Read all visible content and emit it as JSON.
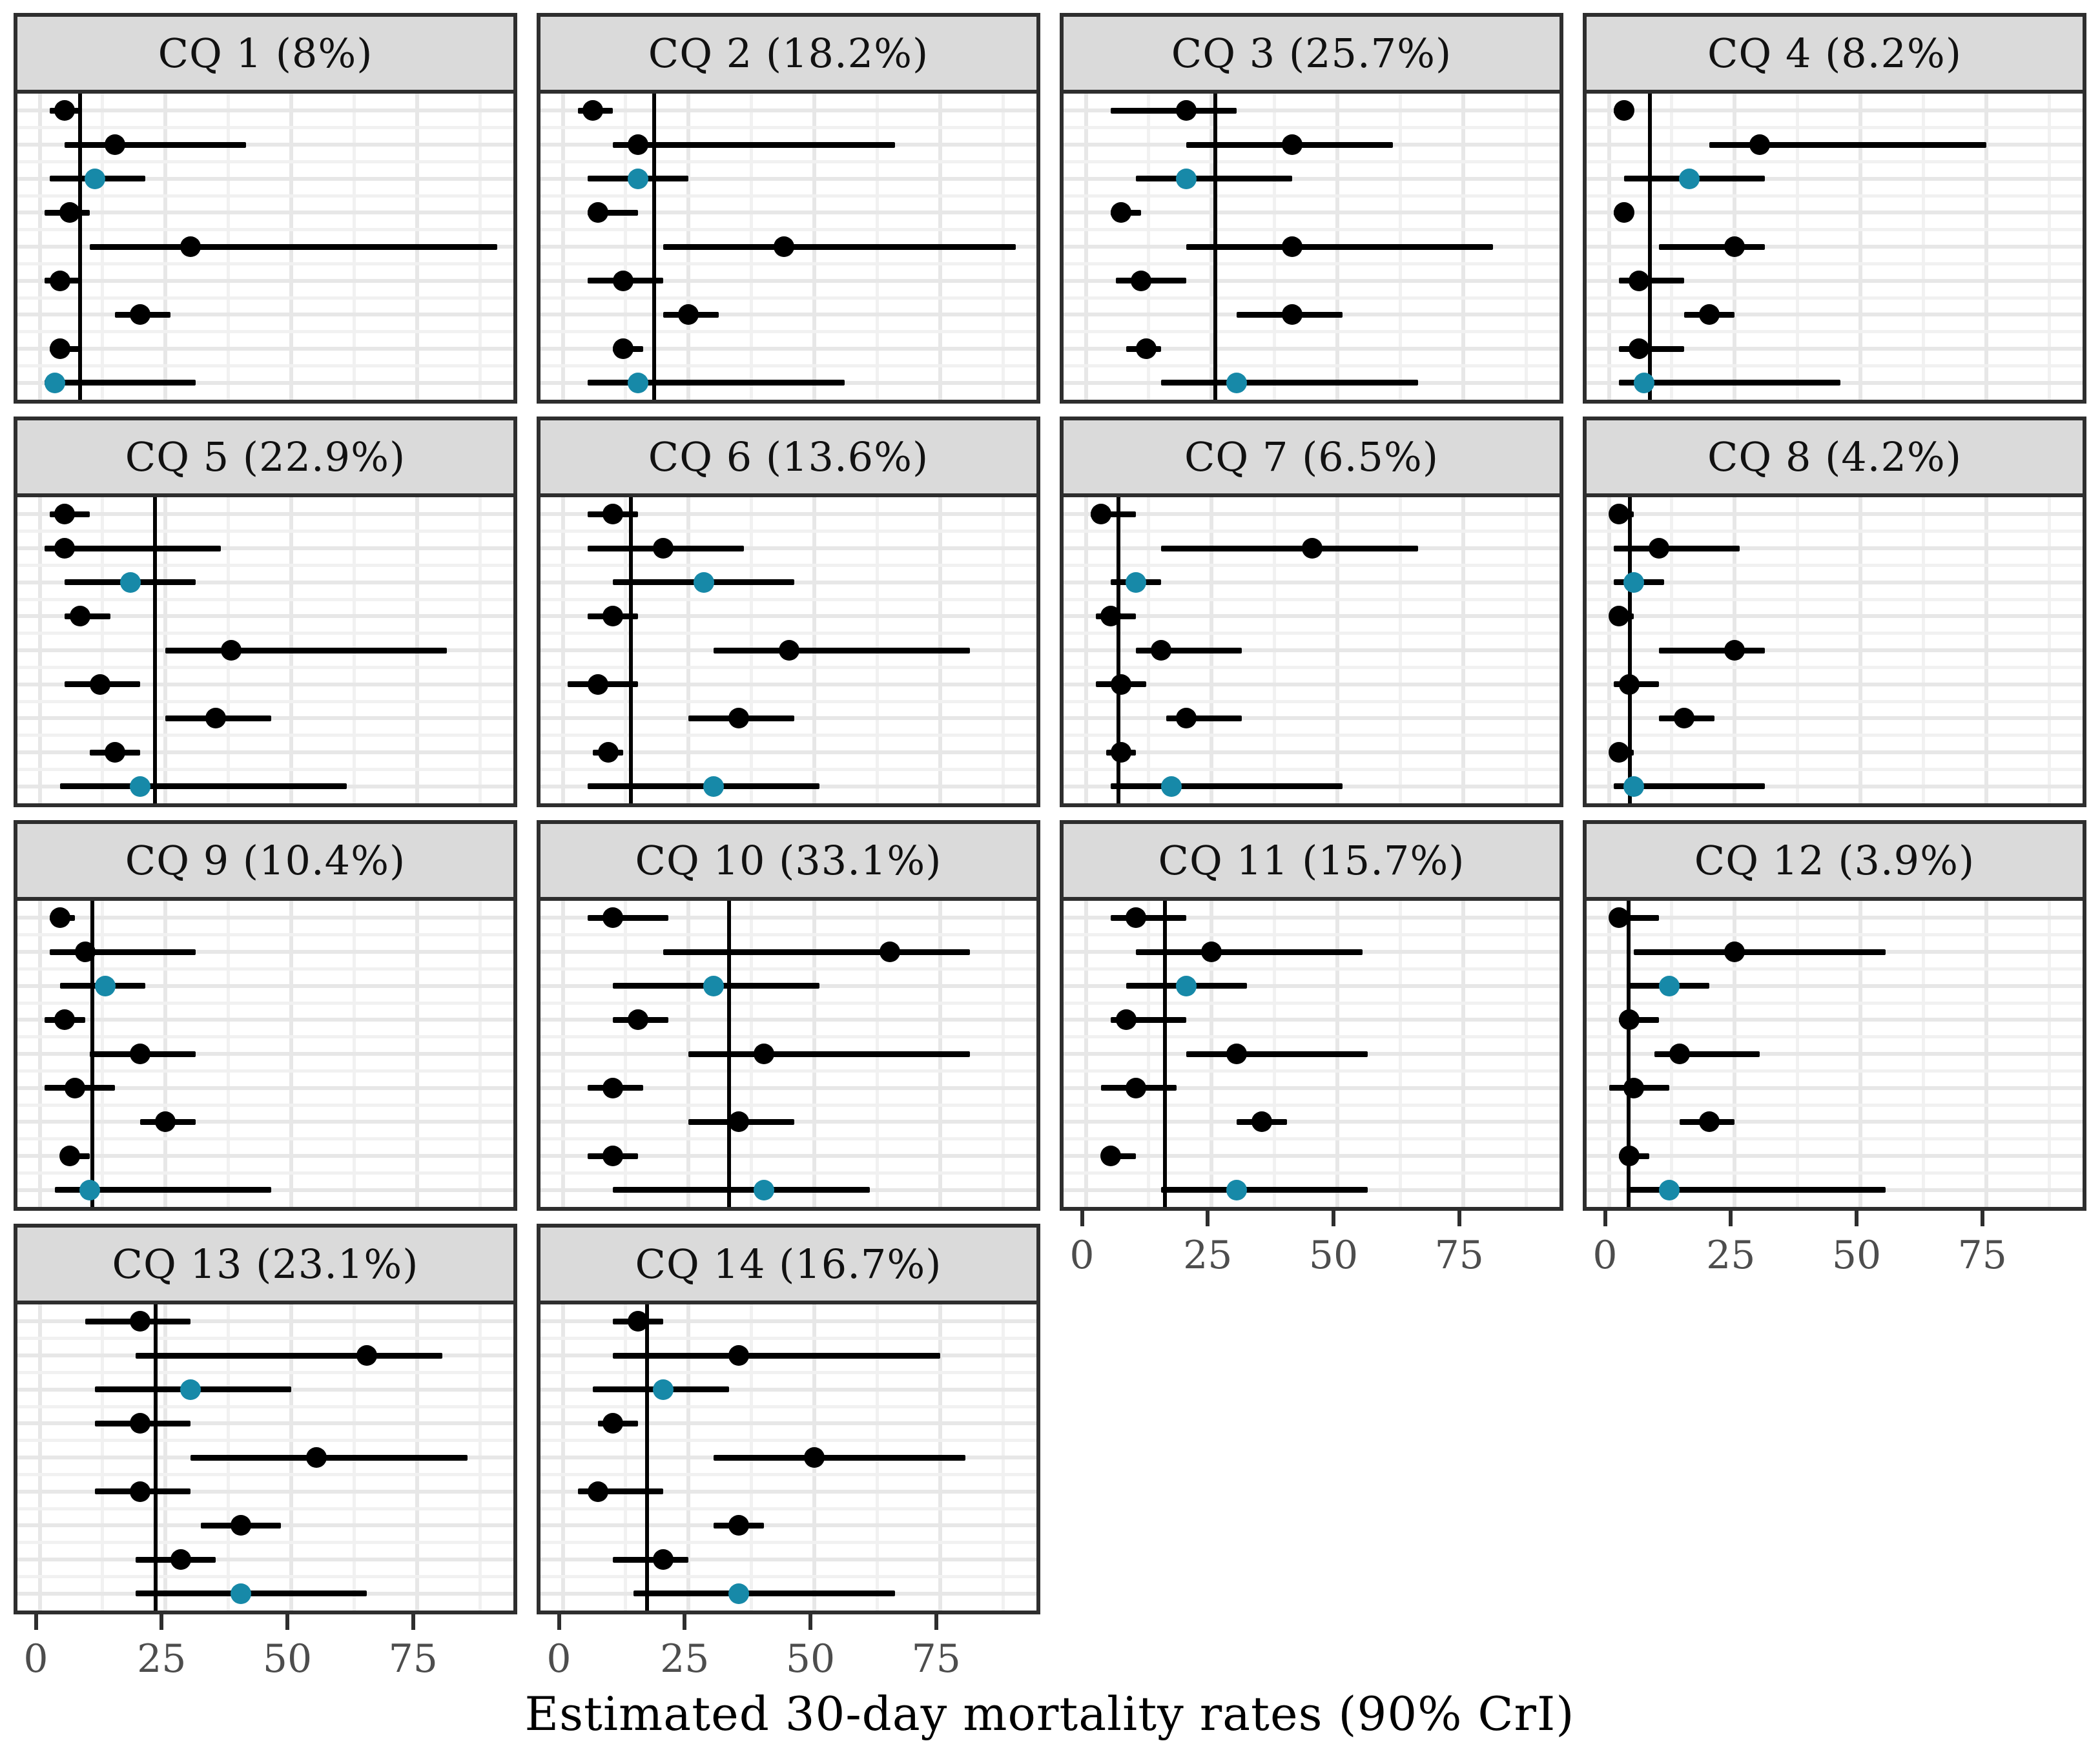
{
  "figure": {
    "caption": "Estimated 30-day mortality rates (90% CrI)"
  },
  "chart_data": {
    "type": "scatter",
    "subtype": "faceted-forest-plot",
    "title": "",
    "xlabel": "Estimated 30-day mortality rates (90% CrI)",
    "ylabel": "",
    "xlim": [
      0,
      96
    ],
    "x_ticks": [
      0,
      25,
      50,
      75
    ],
    "x_minor_gridlines": [
      12.5,
      37.5,
      62.5,
      87.5
    ],
    "grid": true,
    "legend": "none",
    "point_color": "#000000",
    "pooled_point_color": "#1789A8",
    "strip_background": "#DADADA",
    "panel_border_color": "#2E2E2E",
    "gridline_color": "#E7E7E7",
    "axis_text_color": "#4D4D4D",
    "units": "percent",
    "interval_note": "each row = point estimate with 90% credible interval; vertical line = overall rate in facet title; teal points = pooled/highlighted estimates (rows 3 and 9)",
    "panels": [
      {
        "label": "CQ 1 (8%)",
        "reference_line": 8,
        "has_x_axis": false,
        "rows": [
          {
            "est": 5,
            "lo": 2,
            "hi": 8,
            "pooled": false
          },
          {
            "est": 15,
            "lo": 5,
            "hi": 41,
            "pooled": false
          },
          {
            "est": 11,
            "lo": 2,
            "hi": 21,
            "pooled": true
          },
          {
            "est": 6,
            "lo": 1,
            "hi": 10,
            "pooled": false
          },
          {
            "est": 30,
            "lo": 10,
            "hi": 91,
            "pooled": false
          },
          {
            "est": 4,
            "lo": 1,
            "hi": 8,
            "pooled": false
          },
          {
            "est": 20,
            "lo": 15,
            "hi": 26,
            "pooled": false
          },
          {
            "est": 4,
            "lo": 2,
            "hi": 8,
            "pooled": false
          },
          {
            "est": 3,
            "lo": 1,
            "hi": 31,
            "pooled": true
          }
        ]
      },
      {
        "label": "CQ 2 (18.2%)",
        "reference_line": 18.2,
        "has_x_axis": false,
        "rows": [
          {
            "est": 6,
            "lo": 3,
            "hi": 10,
            "pooled": false
          },
          {
            "est": 15,
            "lo": 10,
            "hi": 66,
            "pooled": false
          },
          {
            "est": 15,
            "lo": 5,
            "hi": 25,
            "pooled": true
          },
          {
            "est": 7,
            "lo": 5,
            "hi": 15,
            "pooled": false
          },
          {
            "est": 44,
            "lo": 20,
            "hi": 90,
            "pooled": false
          },
          {
            "est": 12,
            "lo": 5,
            "hi": 20,
            "pooled": false
          },
          {
            "est": 25,
            "lo": 20,
            "hi": 31,
            "pooled": false
          },
          {
            "est": 12,
            "lo": 10,
            "hi": 16,
            "pooled": false
          },
          {
            "est": 15,
            "lo": 5,
            "hi": 56,
            "pooled": true
          }
        ]
      },
      {
        "label": "CQ 3 (25.7%)",
        "reference_line": 25.7,
        "has_x_axis": false,
        "rows": [
          {
            "est": 20,
            "lo": 5,
            "hi": 30,
            "pooled": false
          },
          {
            "est": 41,
            "lo": 20,
            "hi": 61,
            "pooled": false
          },
          {
            "est": 20,
            "lo": 10,
            "hi": 41,
            "pooled": true
          },
          {
            "est": 7,
            "lo": 5,
            "hi": 11,
            "pooled": false
          },
          {
            "est": 41,
            "lo": 20,
            "hi": 81,
            "pooled": false
          },
          {
            "est": 11,
            "lo": 6,
            "hi": 20,
            "pooled": false
          },
          {
            "est": 41,
            "lo": 30,
            "hi": 51,
            "pooled": false
          },
          {
            "est": 12,
            "lo": 8,
            "hi": 15,
            "pooled": false
          },
          {
            "est": 30,
            "lo": 15,
            "hi": 66,
            "pooled": true
          }
        ]
      },
      {
        "label": "CQ 4 (8.2%)",
        "reference_line": 8.2,
        "has_x_axis": false,
        "rows": [
          {
            "est": 3,
            "lo": 1,
            "hi": 5,
            "pooled": false
          },
          {
            "est": 30,
            "lo": 20,
            "hi": 75,
            "pooled": false
          },
          {
            "est": 16,
            "lo": 3,
            "hi": 31,
            "pooled": true
          },
          {
            "est": 3,
            "lo": 1,
            "hi": 5,
            "pooled": false
          },
          {
            "est": 25,
            "lo": 10,
            "hi": 31,
            "pooled": false
          },
          {
            "est": 6,
            "lo": 2,
            "hi": 15,
            "pooled": false
          },
          {
            "est": 20,
            "lo": 15,
            "hi": 25,
            "pooled": false
          },
          {
            "est": 6,
            "lo": 2,
            "hi": 15,
            "pooled": false
          },
          {
            "est": 7,
            "lo": 2,
            "hi": 46,
            "pooled": true
          }
        ]
      },
      {
        "label": "CQ 5 (22.9%)",
        "reference_line": 22.9,
        "has_x_axis": false,
        "rows": [
          {
            "est": 5,
            "lo": 2,
            "hi": 10,
            "pooled": false
          },
          {
            "est": 5,
            "lo": 1,
            "hi": 36,
            "pooled": false
          },
          {
            "est": 18,
            "lo": 5,
            "hi": 31,
            "pooled": true
          },
          {
            "est": 8,
            "lo": 5,
            "hi": 14,
            "pooled": false
          },
          {
            "est": 38,
            "lo": 25,
            "hi": 81,
            "pooled": false
          },
          {
            "est": 12,
            "lo": 5,
            "hi": 20,
            "pooled": false
          },
          {
            "est": 35,
            "lo": 25,
            "hi": 46,
            "pooled": false
          },
          {
            "est": 15,
            "lo": 10,
            "hi": 20,
            "pooled": false
          },
          {
            "est": 20,
            "lo": 4,
            "hi": 61,
            "pooled": true
          }
        ]
      },
      {
        "label": "CQ 6 (13.6%)",
        "reference_line": 13.6,
        "has_x_axis": false,
        "rows": [
          {
            "est": 10,
            "lo": 5,
            "hi": 15,
            "pooled": false
          },
          {
            "est": 20,
            "lo": 5,
            "hi": 36,
            "pooled": false
          },
          {
            "est": 28,
            "lo": 10,
            "hi": 46,
            "pooled": true
          },
          {
            "est": 10,
            "lo": 5,
            "hi": 15,
            "pooled": false
          },
          {
            "est": 45,
            "lo": 30,
            "hi": 81,
            "pooled": false
          },
          {
            "est": 7,
            "lo": 1,
            "hi": 15,
            "pooled": false
          },
          {
            "est": 35,
            "lo": 25,
            "hi": 46,
            "pooled": false
          },
          {
            "est": 9,
            "lo": 6,
            "hi": 12,
            "pooled": false
          },
          {
            "est": 30,
            "lo": 5,
            "hi": 51,
            "pooled": true
          }
        ]
      },
      {
        "label": "CQ 7 (6.5%)",
        "reference_line": 6.5,
        "has_x_axis": false,
        "rows": [
          {
            "est": 3,
            "lo": 1,
            "hi": 10,
            "pooled": false
          },
          {
            "est": 45,
            "lo": 15,
            "hi": 66,
            "pooled": false
          },
          {
            "est": 10,
            "lo": 5,
            "hi": 15,
            "pooled": true
          },
          {
            "est": 5,
            "lo": 2,
            "hi": 10,
            "pooled": false
          },
          {
            "est": 15,
            "lo": 10,
            "hi": 31,
            "pooled": false
          },
          {
            "est": 7,
            "lo": 2,
            "hi": 12,
            "pooled": false
          },
          {
            "est": 20,
            "lo": 16,
            "hi": 31,
            "pooled": false
          },
          {
            "est": 7,
            "lo": 4,
            "hi": 10,
            "pooled": false
          },
          {
            "est": 17,
            "lo": 5,
            "hi": 51,
            "pooled": true
          }
        ]
      },
      {
        "label": "CQ 8 (4.2%)",
        "reference_line": 4.2,
        "has_x_axis": false,
        "rows": [
          {
            "est": 2,
            "lo": 0.5,
            "hi": 5,
            "pooled": false
          },
          {
            "est": 10,
            "lo": 1,
            "hi": 26,
            "pooled": false
          },
          {
            "est": 5,
            "lo": 1,
            "hi": 11,
            "pooled": true
          },
          {
            "est": 2,
            "lo": 0.5,
            "hi": 5,
            "pooled": false
          },
          {
            "est": 25,
            "lo": 10,
            "hi": 31,
            "pooled": false
          },
          {
            "est": 4,
            "lo": 1,
            "hi": 10,
            "pooled": false
          },
          {
            "est": 15,
            "lo": 10,
            "hi": 21,
            "pooled": false
          },
          {
            "est": 2,
            "lo": 0.5,
            "hi": 5,
            "pooled": false
          },
          {
            "est": 5,
            "lo": 1,
            "hi": 31,
            "pooled": true
          }
        ]
      },
      {
        "label": "CQ 9 (10.4%)",
        "reference_line": 10.4,
        "has_x_axis": false,
        "rows": [
          {
            "est": 4,
            "lo": 2,
            "hi": 7,
            "pooled": false
          },
          {
            "est": 9,
            "lo": 2,
            "hi": 31,
            "pooled": false
          },
          {
            "est": 13,
            "lo": 4,
            "hi": 21,
            "pooled": true
          },
          {
            "est": 5,
            "lo": 1,
            "hi": 9,
            "pooled": false
          },
          {
            "est": 20,
            "lo": 10,
            "hi": 31,
            "pooled": false
          },
          {
            "est": 7,
            "lo": 1,
            "hi": 15,
            "pooled": false
          },
          {
            "est": 25,
            "lo": 20,
            "hi": 31,
            "pooled": false
          },
          {
            "est": 6,
            "lo": 4,
            "hi": 10,
            "pooled": false
          },
          {
            "est": 10,
            "lo": 3,
            "hi": 46,
            "pooled": true
          }
        ]
      },
      {
        "label": "CQ 10 (33.1%)",
        "reference_line": 33.1,
        "has_x_axis": false,
        "rows": [
          {
            "est": 10,
            "lo": 5,
            "hi": 21,
            "pooled": false
          },
          {
            "est": 65,
            "lo": 20,
            "hi": 81,
            "pooled": false
          },
          {
            "est": 30,
            "lo": 10,
            "hi": 51,
            "pooled": true
          },
          {
            "est": 15,
            "lo": 10,
            "hi": 21,
            "pooled": false
          },
          {
            "est": 40,
            "lo": 25,
            "hi": 81,
            "pooled": false
          },
          {
            "est": 10,
            "lo": 5,
            "hi": 16,
            "pooled": false
          },
          {
            "est": 35,
            "lo": 25,
            "hi": 46,
            "pooled": false
          },
          {
            "est": 10,
            "lo": 5,
            "hi": 15,
            "pooled": false
          },
          {
            "est": 40,
            "lo": 10,
            "hi": 61,
            "pooled": true
          }
        ]
      },
      {
        "label": "CQ 11 (15.7%)",
        "reference_line": 15.7,
        "has_x_axis": true,
        "rows": [
          {
            "est": 10,
            "lo": 5,
            "hi": 20,
            "pooled": false
          },
          {
            "est": 25,
            "lo": 10,
            "hi": 55,
            "pooled": false
          },
          {
            "est": 20,
            "lo": 8,
            "hi": 32,
            "pooled": true
          },
          {
            "est": 8,
            "lo": 5,
            "hi": 20,
            "pooled": false
          },
          {
            "est": 30,
            "lo": 20,
            "hi": 56,
            "pooled": false
          },
          {
            "est": 10,
            "lo": 3,
            "hi": 18,
            "pooled": false
          },
          {
            "est": 35,
            "lo": 30,
            "hi": 40,
            "pooled": false
          },
          {
            "est": 5,
            "lo": 3,
            "hi": 10,
            "pooled": false
          },
          {
            "est": 30,
            "lo": 15,
            "hi": 56,
            "pooled": true
          }
        ]
      },
      {
        "label": "CQ 12 (3.9%)",
        "reference_line": 3.9,
        "has_x_axis": true,
        "rows": [
          {
            "est": 2,
            "lo": 0,
            "hi": 10,
            "pooled": false
          },
          {
            "est": 25,
            "lo": 5,
            "hi": 55,
            "pooled": false
          },
          {
            "est": 12,
            "lo": 4,
            "hi": 20,
            "pooled": true
          },
          {
            "est": 4,
            "lo": 2,
            "hi": 10,
            "pooled": false
          },
          {
            "est": 14,
            "lo": 9,
            "hi": 30,
            "pooled": false
          },
          {
            "est": 5,
            "lo": 0,
            "hi": 12,
            "pooled": false
          },
          {
            "est": 20,
            "lo": 14,
            "hi": 25,
            "pooled": false
          },
          {
            "est": 4,
            "lo": 2,
            "hi": 8,
            "pooled": false
          },
          {
            "est": 12,
            "lo": 4,
            "hi": 55,
            "pooled": true
          }
        ]
      },
      {
        "label": "CQ 13 (23.1%)",
        "reference_line": 23.1,
        "has_x_axis": true,
        "rows": [
          {
            "est": 20,
            "lo": 9,
            "hi": 30,
            "pooled": false
          },
          {
            "est": 65,
            "lo": 19,
            "hi": 80,
            "pooled": false
          },
          {
            "est": 30,
            "lo": 11,
            "hi": 50,
            "pooled": true
          },
          {
            "est": 20,
            "lo": 11,
            "hi": 30,
            "pooled": false
          },
          {
            "est": 55,
            "lo": 30,
            "hi": 85,
            "pooled": false
          },
          {
            "est": 20,
            "lo": 11,
            "hi": 30,
            "pooled": false
          },
          {
            "est": 40,
            "lo": 32,
            "hi": 48,
            "pooled": false
          },
          {
            "est": 28,
            "lo": 19,
            "hi": 35,
            "pooled": false
          },
          {
            "est": 40,
            "lo": 19,
            "hi": 65,
            "pooled": true
          }
        ]
      },
      {
        "label": "CQ 14 (16.7%)",
        "reference_line": 16.7,
        "has_x_axis": true,
        "rows": [
          {
            "est": 15,
            "lo": 10,
            "hi": 20,
            "pooled": false
          },
          {
            "est": 35,
            "lo": 10,
            "hi": 75,
            "pooled": false
          },
          {
            "est": 20,
            "lo": 6,
            "hi": 33,
            "pooled": true
          },
          {
            "est": 10,
            "lo": 7,
            "hi": 15,
            "pooled": false
          },
          {
            "est": 50,
            "lo": 30,
            "hi": 80,
            "pooled": false
          },
          {
            "est": 7,
            "lo": 3,
            "hi": 20,
            "pooled": false
          },
          {
            "est": 35,
            "lo": 30,
            "hi": 40,
            "pooled": false
          },
          {
            "est": 20,
            "lo": 10,
            "hi": 25,
            "pooled": false
          },
          {
            "est": 35,
            "lo": 14,
            "hi": 66,
            "pooled": true
          }
        ]
      }
    ]
  }
}
